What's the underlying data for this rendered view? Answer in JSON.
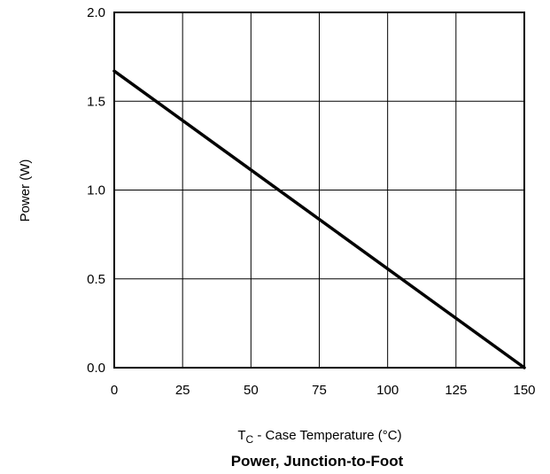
{
  "chart_data": {
    "type": "line",
    "title": "Power, Junction-to-Foot",
    "xlabel": {
      "prefix": "T",
      "subscript": "C",
      "suffix": " - Case Temperature (°C)"
    },
    "ylabel": "Power (W)",
    "xlim": [
      0,
      150
    ],
    "ylim": [
      0,
      2.0
    ],
    "x_ticks": [
      0,
      25,
      50,
      75,
      100,
      125,
      150
    ],
    "x_tick_labels": [
      "0",
      "25",
      "50",
      "75",
      "100",
      "125",
      "150"
    ],
    "y_ticks": [
      0,
      0.5,
      1.0,
      1.5,
      2.0
    ],
    "y_tick_labels": [
      "0.0",
      "0.5",
      "1.0",
      "1.5",
      "2.0"
    ],
    "grid": true,
    "series": [
      {
        "x": [
          0,
          150
        ],
        "y": [
          1.67,
          0
        ],
        "color": "#000000"
      }
    ]
  }
}
